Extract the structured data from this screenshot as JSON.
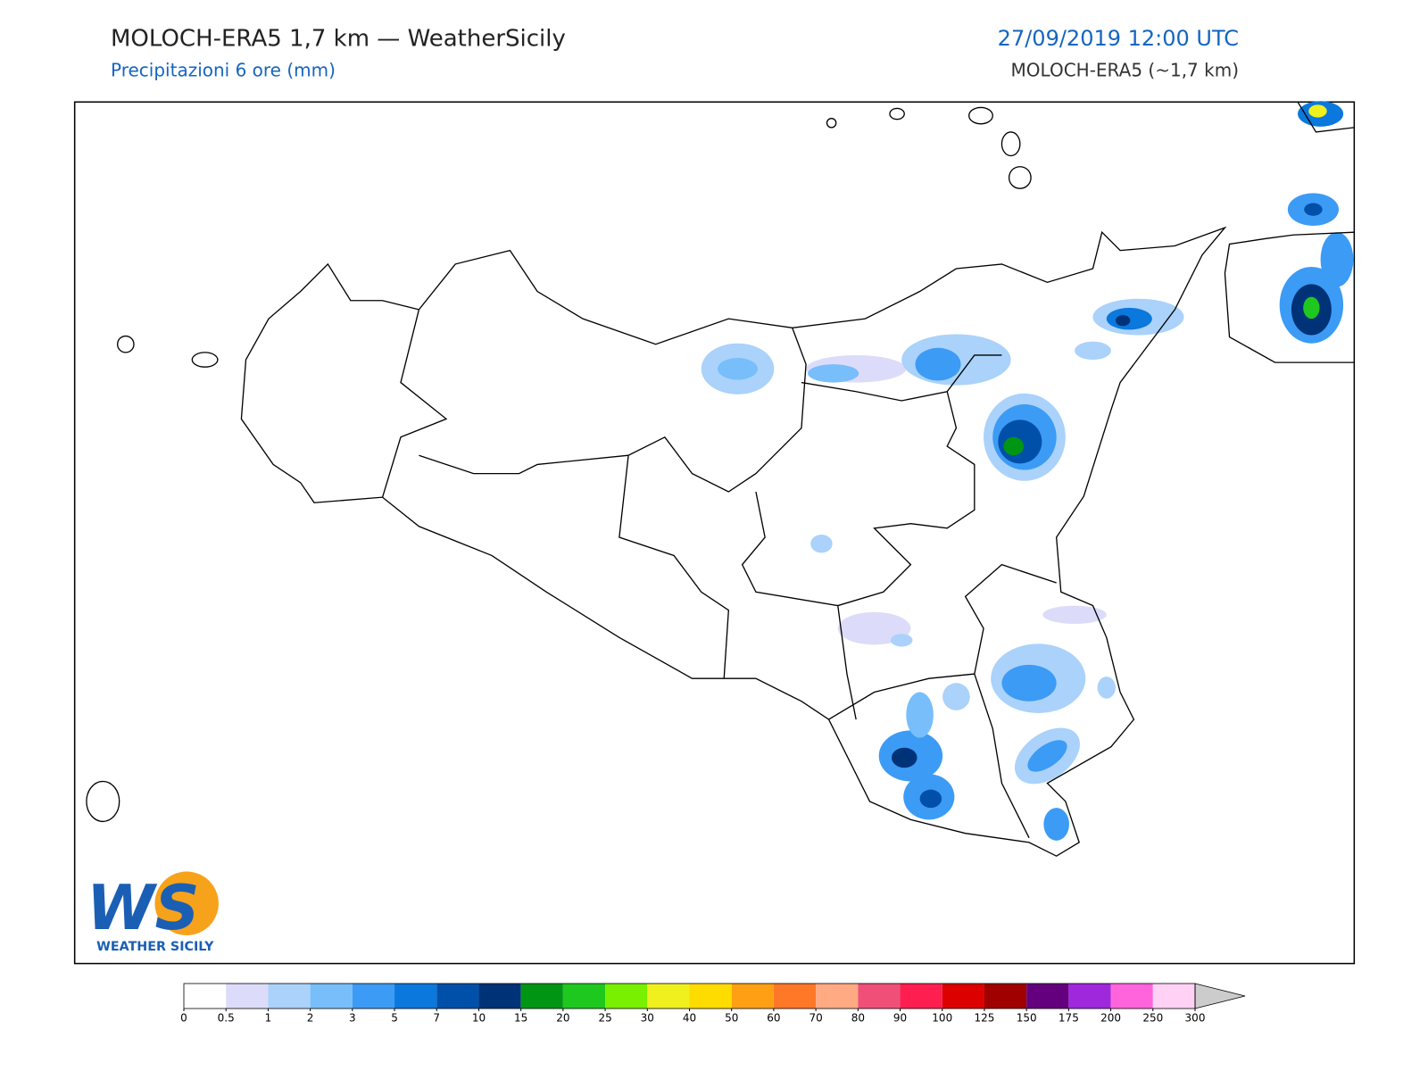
{
  "header": {
    "title": "MOLOCH-ERA5 1,7 km — WeatherSicily",
    "subtitle": "Precipitazioni 6 ore (mm)",
    "datetime": "27/09/2019 12:00 UTC",
    "model": "MOLOCH-ERA5 (~1,7 km)"
  },
  "logo": {
    "initials": "WS",
    "name": "WEATHER SICILY"
  },
  "colorbar": {
    "ticks": [
      0,
      0.5,
      1,
      2,
      3,
      5,
      7,
      10,
      15,
      20,
      25,
      30,
      40,
      50,
      60,
      70,
      80,
      90,
      100,
      125,
      150,
      175,
      200,
      250,
      300
    ],
    "colors": [
      "#ffffff",
      "#dcdcfa",
      "#aad2fa",
      "#78befa",
      "#3c9bf5",
      "#0a78dc",
      "#0050aa",
      "#003278",
      "#009614",
      "#1ec81e",
      "#78f000",
      "#f0f01e",
      "#ffdc00",
      "#ffa014",
      "#ff7828",
      "#ffaa82",
      "#f05078",
      "#ff1e50",
      "#dc0000",
      "#a00000",
      "#64007d",
      "#a028dc",
      "#ff64dc",
      "#ffd2f5"
    ],
    "over_color": "#cccccc"
  }
}
